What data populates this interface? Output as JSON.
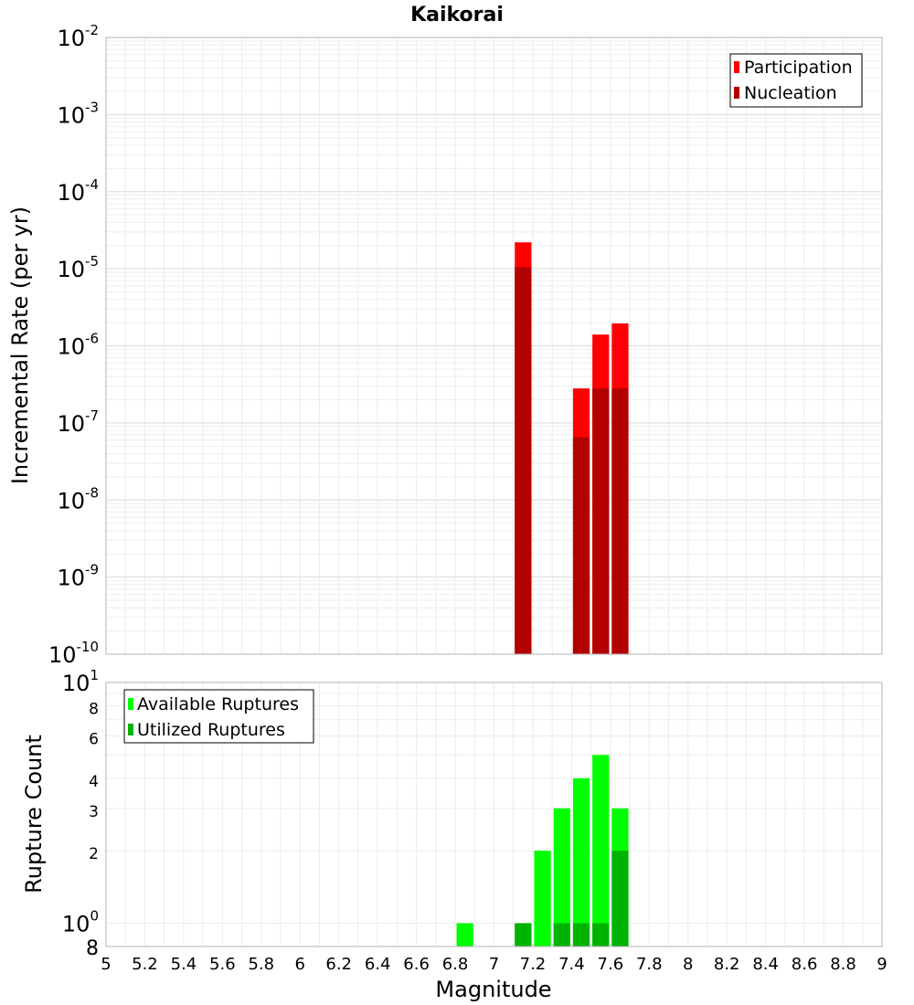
{
  "chart_data": [
    {
      "type": "bar",
      "title": "Kaikorai",
      "ylabel": "Incremental Rate (per yr)",
      "yscale": "log",
      "ylim": [
        1e-10,
        0.01
      ],
      "xlim": [
        5,
        9
      ],
      "bin_width": 0.1,
      "legend_position": "top-right",
      "y_tick_labels": [
        {
          "base": "10",
          "exp": "-10",
          "value": 1e-10
        },
        {
          "base": "10",
          "exp": "-9",
          "value": 1e-09
        },
        {
          "base": "10",
          "exp": "-8",
          "value": 1e-08
        },
        {
          "base": "10",
          "exp": "-7",
          "value": 1e-07
        },
        {
          "base": "10",
          "exp": "-6",
          "value": 1e-06
        },
        {
          "base": "10",
          "exp": "-5",
          "value": 1e-05
        },
        {
          "base": "10",
          "exp": "-4",
          "value": 0.0001
        },
        {
          "base": "10",
          "exp": "-3",
          "value": 0.001
        },
        {
          "base": "10",
          "exp": "-2",
          "value": 0.01
        }
      ],
      "series": [
        {
          "name": "Participation",
          "color": "#ff0000",
          "x": [
            7.15,
            7.45,
            7.55,
            7.65
          ],
          "values": [
            2.2e-05,
            2.8e-07,
            1.4e-06,
            1.95e-06
          ]
        },
        {
          "name": "Nucleation",
          "color": "#b30000",
          "x": [
            7.15,
            7.45,
            7.55,
            7.65
          ],
          "values": [
            1.05e-05,
            6.5e-08,
            2.8e-07,
            2.8e-07
          ]
        }
      ]
    },
    {
      "type": "bar",
      "title": "",
      "xlabel": "Magnitude",
      "ylabel": "Rupture Count",
      "yscale": "log",
      "ylim": [
        0.8,
        10
      ],
      "xlim": [
        5,
        9
      ],
      "bin_width": 0.1,
      "legend_position": "top-left",
      "x_tick_labels": [
        "5",
        "5.2",
        "5.4",
        "5.6",
        "5.8",
        "6",
        "6.2",
        "6.4",
        "6.6",
        "6.8",
        "7",
        "7.2",
        "7.4",
        "7.6",
        "7.8",
        "8",
        "8.2",
        "8.4",
        "8.6",
        "8.8",
        "9"
      ],
      "y_tick_labels": [
        {
          "base": "8",
          "exp": "",
          "value": 0.8
        },
        {
          "base": "10",
          "exp": "0",
          "value": 1
        },
        {
          "base": "2",
          "exp": "",
          "value": 2
        },
        {
          "base": "3",
          "exp": "",
          "value": 3
        },
        {
          "base": "4",
          "exp": "",
          "value": 4
        },
        {
          "base": "6",
          "exp": "",
          "value": 6
        },
        {
          "base": "8",
          "exp": "",
          "value": 8
        },
        {
          "base": "10",
          "exp": "1",
          "value": 10
        }
      ],
      "series": [
        {
          "name": "Available Ruptures",
          "color": "#00ff00",
          "x": [
            6.85,
            7.15,
            7.25,
            7.35,
            7.45,
            7.55,
            7.65
          ],
          "values": [
            1,
            1,
            2,
            3,
            4,
            5,
            3
          ]
        },
        {
          "name": "Utilized Ruptures",
          "color": "#00b300",
          "x": [
            7.15,
            7.35,
            7.45,
            7.55,
            7.65
          ],
          "values": [
            1,
            1,
            1,
            1,
            2
          ]
        }
      ]
    }
  ]
}
